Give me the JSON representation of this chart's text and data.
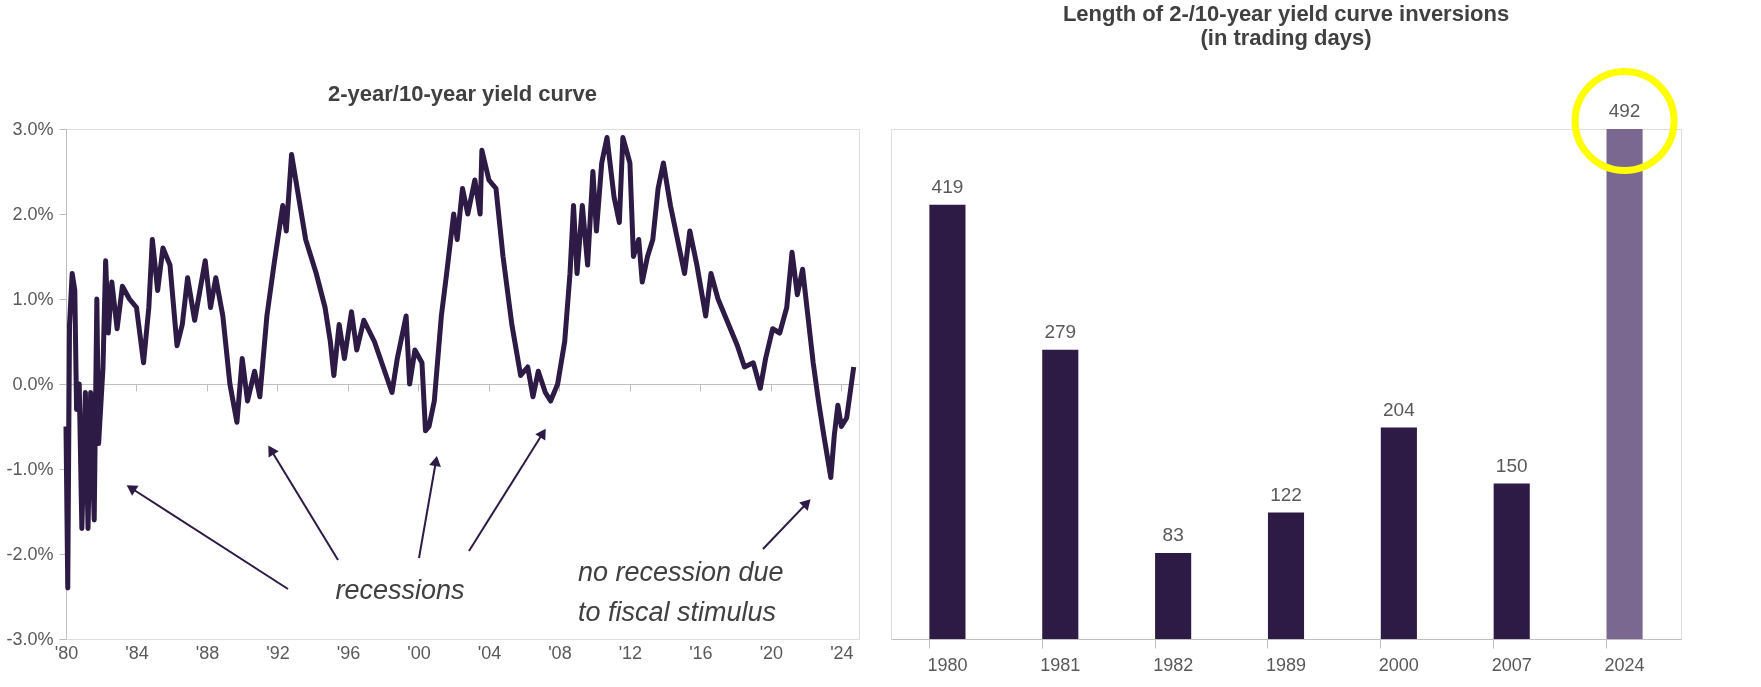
{
  "chart_data": [
    {
      "type": "line",
      "title": "2-year/10-year yield curve",
      "x": [
        1980.0,
        1980.1,
        1980.2,
        1980.35,
        1980.5,
        1980.6,
        1980.75,
        1980.9,
        1981.1,
        1981.25,
        1981.4,
        1981.6,
        1981.75,
        1981.85,
        1982.1,
        1982.25,
        1982.4,
        1982.6,
        1982.9,
        1983.2,
        1983.6,
        1984.0,
        1984.4,
        1984.7,
        1984.9,
        1985.2,
        1985.5,
        1985.9,
        1986.3,
        1986.6,
        1986.9,
        1987.3,
        1987.6,
        1987.9,
        1988.2,
        1988.5,
        1988.9,
        1989.3,
        1989.7,
        1990.0,
        1990.3,
        1990.7,
        1991.0,
        1991.4,
        1991.8,
        1992.3,
        1992.5,
        1992.8,
        1993.2,
        1993.6,
        1994.2,
        1994.7,
        1995.0,
        1995.2,
        1995.5,
        1995.8,
        1996.2,
        1996.5,
        1996.9,
        1997.5,
        1998.0,
        1998.5,
        1998.8,
        1999.3,
        1999.5,
        1999.8,
        2000.2,
        2000.4,
        2000.6,
        2000.9,
        2001.3,
        2001.6,
        2002.0,
        2002.2,
        2002.5,
        2002.8,
        2003.2,
        2003.5,
        2003.6,
        2004.0,
        2004.4,
        2004.8,
        2005.3,
        2005.8,
        2006.2,
        2006.5,
        2006.8,
        2007.2,
        2007.5,
        2007.9,
        2008.3,
        2008.6,
        2008.8,
        2009.0,
        2009.3,
        2009.6,
        2009.9,
        2010.1,
        2010.4,
        2010.7,
        2011.1,
        2011.4,
        2011.6,
        2012.0,
        2012.2,
        2012.5,
        2012.7,
        2013.0,
        2013.3,
        2013.6,
        2013.9,
        2014.3,
        2014.8,
        2015.1,
        2015.4,
        2015.8,
        2016.3,
        2016.6,
        2017.0,
        2017.6,
        2018.1,
        2018.5,
        2019.0,
        2019.4,
        2019.7,
        2020.1,
        2020.5,
        2020.9,
        2021.2,
        2021.5,
        2021.8,
        2022.1,
        2022.4,
        2022.7,
        2023.0,
        2023.4,
        2023.6,
        2023.8,
        2024.0,
        2024.3,
        2024.5,
        2024.7
      ],
      "series": [
        {
          "color": "#2d1a45",
          "values": [
            -0.5,
            -2.4,
            0.7,
            1.3,
            1.1,
            -0.3,
            0.0,
            -1.7,
            -0.1,
            -1.7,
            -0.1,
            -1.6,
            1.0,
            -0.7,
            0.2,
            1.45,
            0.6,
            1.2,
            0.65,
            1.15,
            1.0,
            0.9,
            0.25,
            0.9,
            1.7,
            1.1,
            1.6,
            1.4,
            0.45,
            0.7,
            1.25,
            0.75,
            1.1,
            1.45,
            0.9,
            1.25,
            0.8,
            0.0,
            -0.45,
            0.3,
            -0.2,
            0.15,
            -0.15,
            0.8,
            1.4,
            2.1,
            1.8,
            2.7,
            2.2,
            1.7,
            1.3,
            0.9,
            0.5,
            0.1,
            0.7,
            0.3,
            0.85,
            0.4,
            0.75,
            0.5,
            0.2,
            -0.1,
            0.3,
            0.8,
            0.0,
            0.4,
            0.25,
            -0.55,
            -0.5,
            -0.2,
            0.8,
            1.3,
            2.0,
            1.7,
            2.3,
            2.0,
            2.4,
            2.0,
            2.75,
            2.4,
            2.3,
            1.5,
            0.7,
            0.1,
            0.2,
            -0.15,
            0.15,
            -0.1,
            -0.2,
            0.0,
            0.5,
            1.3,
            2.1,
            1.3,
            2.1,
            1.4,
            2.5,
            1.8,
            2.6,
            2.9,
            2.2,
            1.9,
            2.9,
            2.6,
            1.5,
            1.7,
            1.2,
            1.5,
            1.7,
            2.3,
            2.6,
            2.1,
            1.6,
            1.3,
            1.8,
            1.4,
            0.8,
            1.3,
            1.0,
            0.7,
            0.45,
            0.2,
            0.25,
            -0.05,
            0.3,
            0.65,
            0.6,
            0.9,
            1.55,
            1.05,
            1.35,
            0.8,
            0.25,
            -0.2,
            -0.6,
            -1.1,
            -0.6,
            -0.25,
            -0.5,
            -0.4,
            -0.1,
            0.2
          ]
        }
      ],
      "xlim": [
        1980,
        2025
      ],
      "xticks": [
        {
          "value": 1980,
          "label": "'80"
        },
        {
          "value": 1984,
          "label": "'84"
        },
        {
          "value": 1988,
          "label": "'88"
        },
        {
          "value": 1992,
          "label": "'92"
        },
        {
          "value": 1996,
          "label": "'96"
        },
        {
          "value": 2000,
          "label": "'00"
        },
        {
          "value": 2004,
          "label": "'04"
        },
        {
          "value": 2008,
          "label": "'08"
        },
        {
          "value": 2012,
          "label": "'12"
        },
        {
          "value": 2016,
          "label": "'16"
        },
        {
          "value": 2020,
          "label": "'20"
        },
        {
          "value": 2024,
          "label": "'24"
        }
      ],
      "ylim": [
        -3,
        3
      ],
      "yticks": [
        {
          "value": -3,
          "label": "-3.0%"
        },
        {
          "value": -2,
          "label": "-2.0%"
        },
        {
          "value": -1,
          "label": "-1.0%"
        },
        {
          "value": 0,
          "label": "0.0%"
        },
        {
          "value": 1,
          "label": "1.0%"
        },
        {
          "value": 2,
          "label": "2.0%"
        },
        {
          "value": 3,
          "label": "3.0%"
        }
      ],
      "annotations": [
        "recessions",
        "no recession due to fiscal stimulus"
      ],
      "line_style": "solid"
    },
    {
      "type": "bar",
      "title": "Length of 2-/10-year yield curve inversions (in trading days)",
      "categories": [
        "1980",
        "1981",
        "1982",
        "1989",
        "2000",
        "2007",
        "2024"
      ],
      "values": [
        419,
        279,
        83,
        122,
        204,
        150,
        492
      ],
      "colors": [
        "#2d1a45",
        "#2d1a45",
        "#2d1a45",
        "#2d1a45",
        "#2d1a45",
        "#2d1a45",
        "#7a6890"
      ],
      "data_labels": true
    }
  ]
}
